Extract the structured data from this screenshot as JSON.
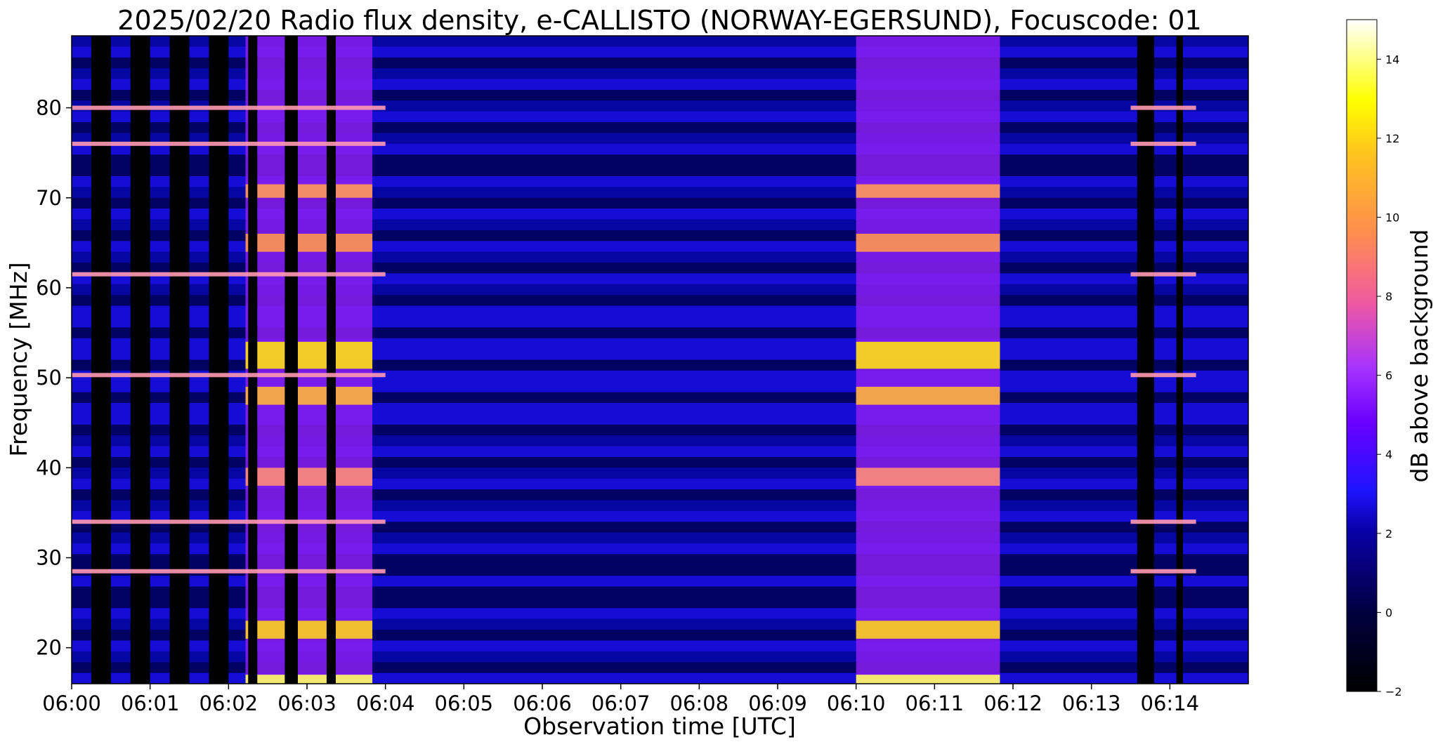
{
  "chart_data": {
    "type": "heatmap",
    "title": "2025/02/20  Radio flux density, e-CALLISTO (NORWAY-EGERSUND), Focuscode: 01",
    "xlabel": "Observation time [UTC]",
    "ylabel": "Frequency [MHz]",
    "x_range": [
      "06:00:00",
      "06:15:00"
    ],
    "y_range": [
      16,
      88
    ],
    "x_ticks": [
      "06:00",
      "06:01",
      "06:02",
      "06:03",
      "06:04",
      "06:05",
      "06:06",
      "06:07",
      "06:08",
      "06:09",
      "06:10",
      "06:11",
      "06:12",
      "06:13",
      "06:14"
    ],
    "y_ticks": [
      20,
      30,
      40,
      50,
      60,
      70,
      80
    ],
    "colormap": "gnuplot2",
    "colorbar": {
      "label": "dB above background",
      "range": [
        -2,
        15
      ],
      "ticks": [
        -2,
        0,
        2,
        4,
        6,
        8,
        10,
        12,
        14
      ]
    },
    "bright_intervals": [
      {
        "start": "06:02:13",
        "end": "06:03:50",
        "peak_db": 14
      },
      {
        "start": "06:10:00",
        "end": "06:11:50",
        "peak_db": 14
      }
    ],
    "gap_intervals": [
      {
        "start": "06:00:15",
        "end": "06:00:30"
      },
      {
        "start": "06:00:45",
        "end": "06:01:00"
      },
      {
        "start": "06:01:15",
        "end": "06:01:30"
      },
      {
        "start": "06:01:45",
        "end": "06:02:00"
      },
      {
        "start": "06:02:15",
        "end": "06:02:22"
      },
      {
        "start": "06:02:43",
        "end": "06:02:53"
      },
      {
        "start": "06:03:15",
        "end": "06:03:22"
      },
      {
        "start": "06:13:35",
        "end": "06:13:48"
      },
      {
        "start": "06:14:05",
        "end": "06:14:10"
      }
    ],
    "narrowband_lines_mhz": [
      80,
      76,
      61.5,
      50.3,
      34,
      28.5
    ],
    "grid": false,
    "legend": "colorbar-right"
  }
}
